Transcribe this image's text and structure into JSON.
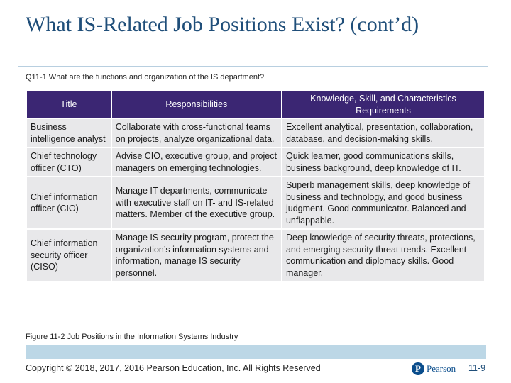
{
  "slide": {
    "title": "What IS-Related Job Positions Exist? (cont’d)",
    "subtitle": "Q11-1 What are the functions and organization of the IS department?",
    "caption": "Figure 11-2 Job Positions in the Information Systems Industry",
    "copyright": "Copyright © 2018, 2017, 2016 Pearson Education, Inc. All Rights Reserved",
    "logo_mark": "P",
    "logo_text": "Pearson",
    "page_number": "11-9"
  },
  "table": {
    "headers": [
      "Title",
      "Responsibilities",
      "Knowledge, Skill, and Characteristics Requirements"
    ],
    "rows": [
      [
        "Business intelligence analyst",
        "Collaborate with cross-functional teams on projects, analyze organizational data.",
        "Excellent analytical, presentation, collaboration, database, and decision-making skills."
      ],
      [
        "Chief technology officer (CTO)",
        "Advise CIO, executive group, and project managers on emerging technologies.",
        "Quick learner, good communications skills, business background, deep knowledge of IT."
      ],
      [
        "Chief information officer (CIO)",
        "Manage IT departments, communicate with executive staff on IT- and IS-related matters. Member of the executive group.",
        "Superb management skills, deep knowledge of business and technology, and good business judgment. Good communicator. Balanced and unflappable."
      ],
      [
        "Chief information security officer (CISO)",
        "Manage IS security program, protect the organization’s information systems and information, manage IS security personnel.",
        "Deep knowledge of security threats, protections, and emerging security threat trends. Excellent communication and diplomacy skills. Good manager."
      ]
    ]
  },
  "colors": {
    "title": "#1f4e79",
    "header_bg": "#3b2673",
    "cell_bg": "#e8e8ea",
    "band": "#bcd7e6",
    "logo": "#0a4d8c"
  }
}
